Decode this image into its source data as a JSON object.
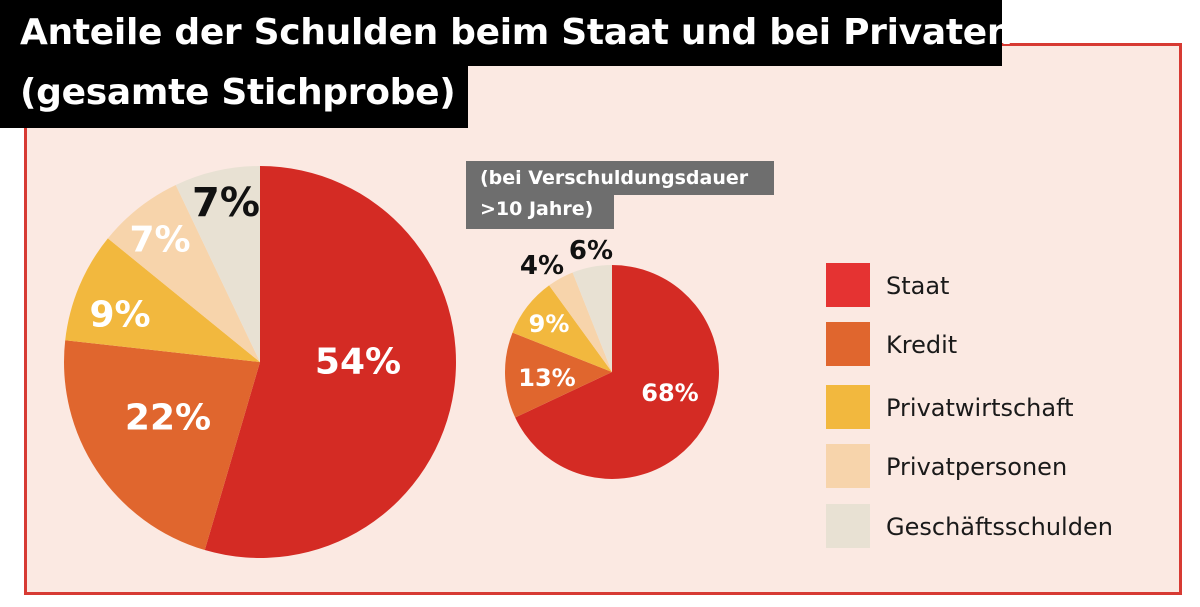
{
  "title": {
    "line1": "Anteile der Schulden beim Staat und bei Privaten",
    "line2": "(gesamte Stichprobe)"
  },
  "subtitle": {
    "line1": "(bei Verschuldungsdauer",
    "line2": ">10 Jahre)"
  },
  "colors": {
    "frame_border": "#d73a33",
    "frame_bg": "#fbe9e2",
    "Staat": "#d42b24",
    "Kredit": "#e0662e",
    "Privatwirtschaft": "#f2b83e",
    "Privatpersonen": "#f7d4ab",
    "Geschäftsschulden": "#e8e1d3"
  },
  "legend": [
    {
      "label": "Staat",
      "color": "#e53332"
    },
    {
      "label": "Kredit",
      "color": "#e0662e"
    },
    {
      "label": "Privatwirtschaft",
      "color": "#f2b83e"
    },
    {
      "label": "Privatpersonen",
      "color": "#f7d4ab"
    },
    {
      "label": "Geschäftsschulden",
      "color": "#e8e1d3"
    }
  ],
  "chart_data": [
    {
      "type": "pie",
      "title": "Anteile der Schulden beim Staat und bei Privaten (gesamte Stichprobe)",
      "categories": [
        "Staat",
        "Kredit",
        "Privatwirtschaft",
        "Privatpersonen",
        "Geschäftsschulden"
      ],
      "values": [
        54,
        22,
        9,
        7,
        7
      ],
      "labels": [
        "54%",
        "22%",
        "9%",
        "7%",
        "7%"
      ]
    },
    {
      "type": "pie",
      "title": "(bei Verschuldungsdauer >10 Jahre)",
      "categories": [
        "Staat",
        "Kredit",
        "Privatwirtschaft",
        "Privatpersonen",
        "Geschäftsschulden"
      ],
      "values": [
        68,
        13,
        9,
        4,
        6
      ],
      "labels": [
        "68%",
        "13%",
        "9%",
        "4%",
        "6%"
      ]
    }
  ]
}
